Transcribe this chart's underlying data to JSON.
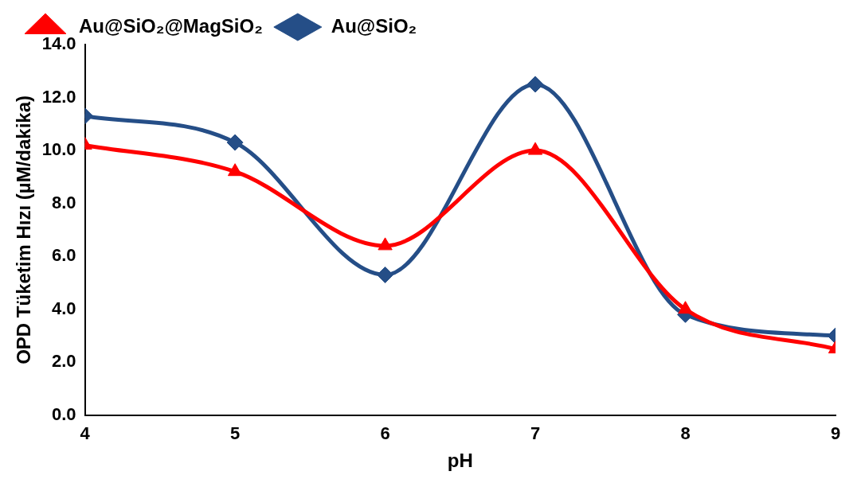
{
  "chart_data": {
    "type": "line",
    "xlabel": "pH",
    "ylabel": "OPD Tüketim Hızı (µM/dakika)",
    "x": [
      4,
      5,
      6,
      7,
      8,
      9
    ],
    "series": [
      {
        "name": "Au@SiO₂@MagSiO₂",
        "color": "#ff0000",
        "marker": "triangle",
        "values": [
          10.2,
          9.2,
          6.4,
          10.0,
          4.0,
          2.5
        ]
      },
      {
        "name": "Au@SiO₂",
        "color": "#254e87",
        "marker": "diamond",
        "values": [
          11.3,
          10.3,
          5.3,
          12.5,
          3.8,
          3.0
        ]
      }
    ],
    "xlim": [
      4,
      9
    ],
    "xticks": [
      4,
      5,
      6,
      7,
      8,
      9
    ],
    "ylim": [
      0,
      14
    ],
    "yticks": [
      {
        "value": 0,
        "label": "0.0"
      },
      {
        "value": 2,
        "label": "2.0"
      },
      {
        "value": 4,
        "label": "4.0"
      },
      {
        "value": 6,
        "label": "6.0"
      },
      {
        "value": 8,
        "label": "8.0"
      },
      {
        "value": 10,
        "label": "10.0"
      },
      {
        "value": 12,
        "label": "12.0"
      },
      {
        "value": 14,
        "label": "14.0"
      }
    ],
    "grid": false,
    "legend": "top",
    "line_style": "solid"
  }
}
